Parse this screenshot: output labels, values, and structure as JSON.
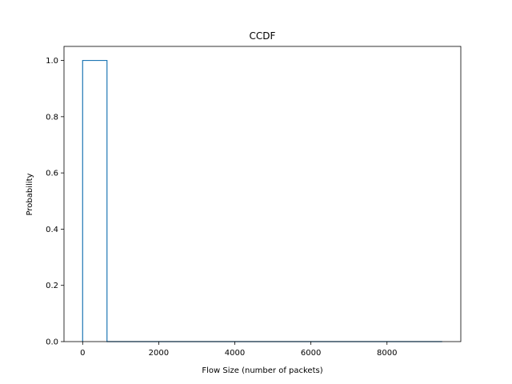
{
  "chart_data": {
    "type": "line",
    "title": "CCDF",
    "xlabel": "Flow Size (number of packets)",
    "ylabel": "Probability",
    "xlim": [
      -490,
      9940
    ],
    "ylim": [
      0,
      1.05
    ],
    "xticks": [
      0,
      2000,
      4000,
      6000,
      8000
    ],
    "xtick_labels": [
      "0",
      "2000",
      "4000",
      "6000",
      "8000"
    ],
    "yticks": [
      0.0,
      0.2,
      0.4,
      0.6,
      0.8,
      1.0
    ],
    "ytick_labels": [
      "0.0",
      "0.2",
      "0.4",
      "0.6",
      "0.8",
      "1.0"
    ],
    "grid": false,
    "series": [
      {
        "x": [
          0,
          0,
          640,
          640,
          9450
        ],
        "y": [
          0,
          1.0,
          1.0,
          0,
          0
        ],
        "color": "#1f77b4",
        "style": "step"
      }
    ]
  }
}
